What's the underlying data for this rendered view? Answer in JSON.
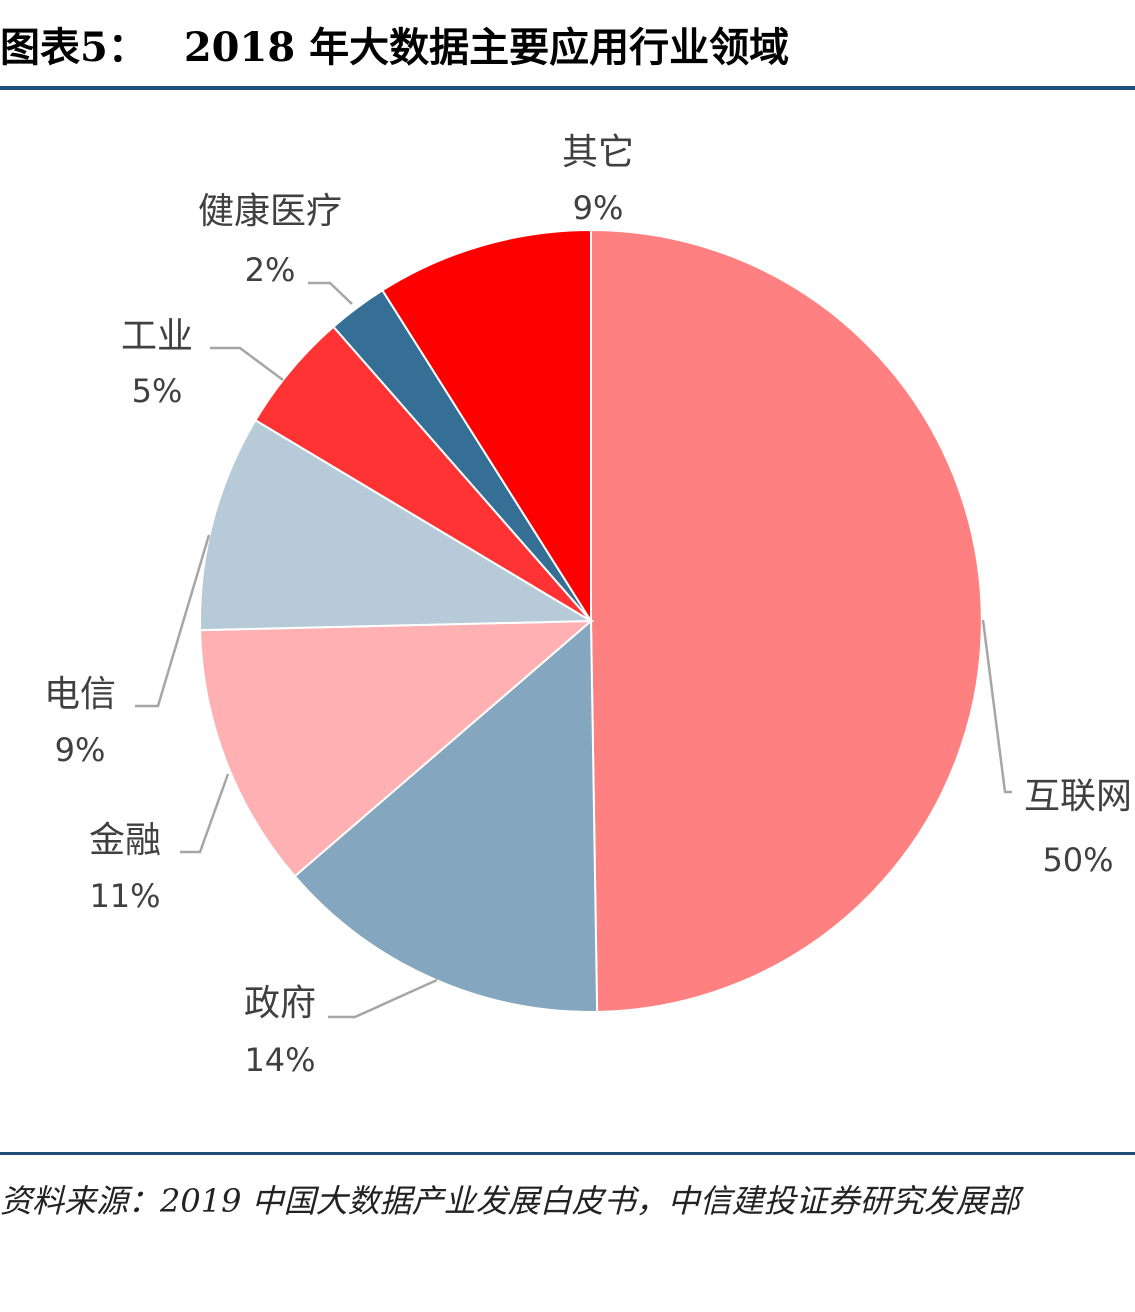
{
  "figure": {
    "number": "图表5：",
    "title": "2018 年大数据主要应用行业领域"
  },
  "source": "资料来源：2019 中国大数据产业发展白皮书，中信建投证券研究发展部",
  "chart_data": {
    "type": "pie",
    "start": "12 o'clock, clockwise",
    "slices": [
      {
        "name": "互联网",
        "label": "50%",
        "value": 50,
        "color": "#ff8080"
      },
      {
        "name": "政府",
        "label": "14%",
        "value": 14,
        "color": "#84a6be"
      },
      {
        "name": "金融",
        "label": "11%",
        "value": 11,
        "color": "#ffb0b2"
      },
      {
        "name": "电信",
        "label": "9%",
        "value": 9,
        "color": "#b6cad8"
      },
      {
        "name": "工业",
        "label": "5%",
        "value": 5,
        "color": "#ff3333"
      },
      {
        "name": "健康医疗",
        "label": "2%",
        "value": 2.5,
        "color": "#356f96"
      },
      {
        "name": "其它",
        "label": "9%",
        "value": 9,
        "color": "#ff0000"
      }
    ]
  }
}
